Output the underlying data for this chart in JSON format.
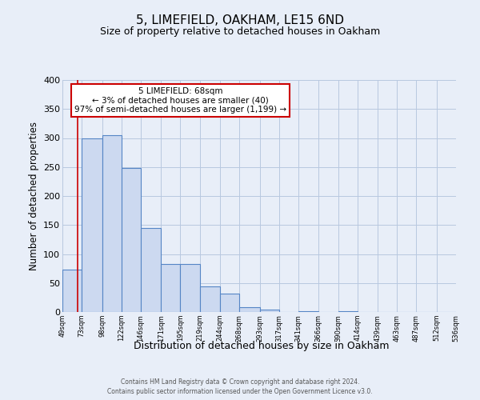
{
  "title": "5, LIMEFIELD, OAKHAM, LE15 6ND",
  "subtitle": "Size of property relative to detached houses in Oakham",
  "xlabel": "Distribution of detached houses by size in Oakham",
  "ylabel": "Number of detached properties",
  "bin_edges": [
    49,
    73,
    98,
    122,
    146,
    171,
    195,
    219,
    244,
    268,
    293,
    317,
    341,
    366,
    390,
    414,
    439,
    463,
    487,
    512,
    536
  ],
  "bar_heights": [
    73,
    300,
    305,
    248,
    145,
    83,
    83,
    44,
    32,
    8,
    4,
    0,
    1,
    0,
    1,
    0,
    0,
    0,
    0,
    0
  ],
  "bar_color": "#ccd9f0",
  "bar_edge_color": "#5585c5",
  "grid_color": "#b8c8e0",
  "background_color": "#e8eef8",
  "red_line_x": 68,
  "annotation_line1": "5 LIMEFIELD: 68sqm",
  "annotation_line2": "← 3% of detached houses are smaller (40)",
  "annotation_line3": "97% of semi-detached houses are larger (1,199) →",
  "annotation_box_color": "#ffffff",
  "annotation_box_edge": "#cc0000",
  "ylim": [
    0,
    400
  ],
  "yticks": [
    0,
    50,
    100,
    150,
    200,
    250,
    300,
    350,
    400
  ],
  "footer_line1": "Contains HM Land Registry data © Crown copyright and database right 2024.",
  "footer_line2": "Contains public sector information licensed under the Open Government Licence v3.0."
}
